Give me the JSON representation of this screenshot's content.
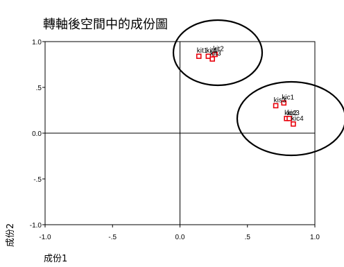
{
  "chart_data": {
    "type": "scatter",
    "title": "轉軸後空間中的成份圖",
    "xlabel": "成份1",
    "ylabel": "成份2",
    "xlim": [
      -1.0,
      1.0
    ],
    "ylim": [
      -1.0,
      1.0
    ],
    "xticks": [
      "-1.0",
      "-.5",
      "0.0",
      ".5",
      "1.0"
    ],
    "yticks": [
      "1.0",
      ".5",
      "0.0",
      "-.5",
      "-1.0"
    ],
    "grid": false,
    "legend": "none",
    "marker_color": "#e8000b",
    "points": [
      {
        "label": "kit1",
        "x": 0.14,
        "y": 0.84
      },
      {
        "label": "kit4",
        "x": 0.21,
        "y": 0.84
      },
      {
        "label": "kit3",
        "x": 0.24,
        "y": 0.81
      },
      {
        "label": "kit2",
        "x": 0.26,
        "y": 0.86
      },
      {
        "label": "kic1",
        "x": 0.77,
        "y": 0.33
      },
      {
        "label": "kis3",
        "x": 0.71,
        "y": 0.3
      },
      {
        "label": "kic2",
        "x": 0.79,
        "y": 0.16
      },
      {
        "label": "kic3",
        "x": 0.81,
        "y": 0.16
      },
      {
        "label": "kic4",
        "x": 0.84,
        "y": 0.1
      }
    ]
  }
}
